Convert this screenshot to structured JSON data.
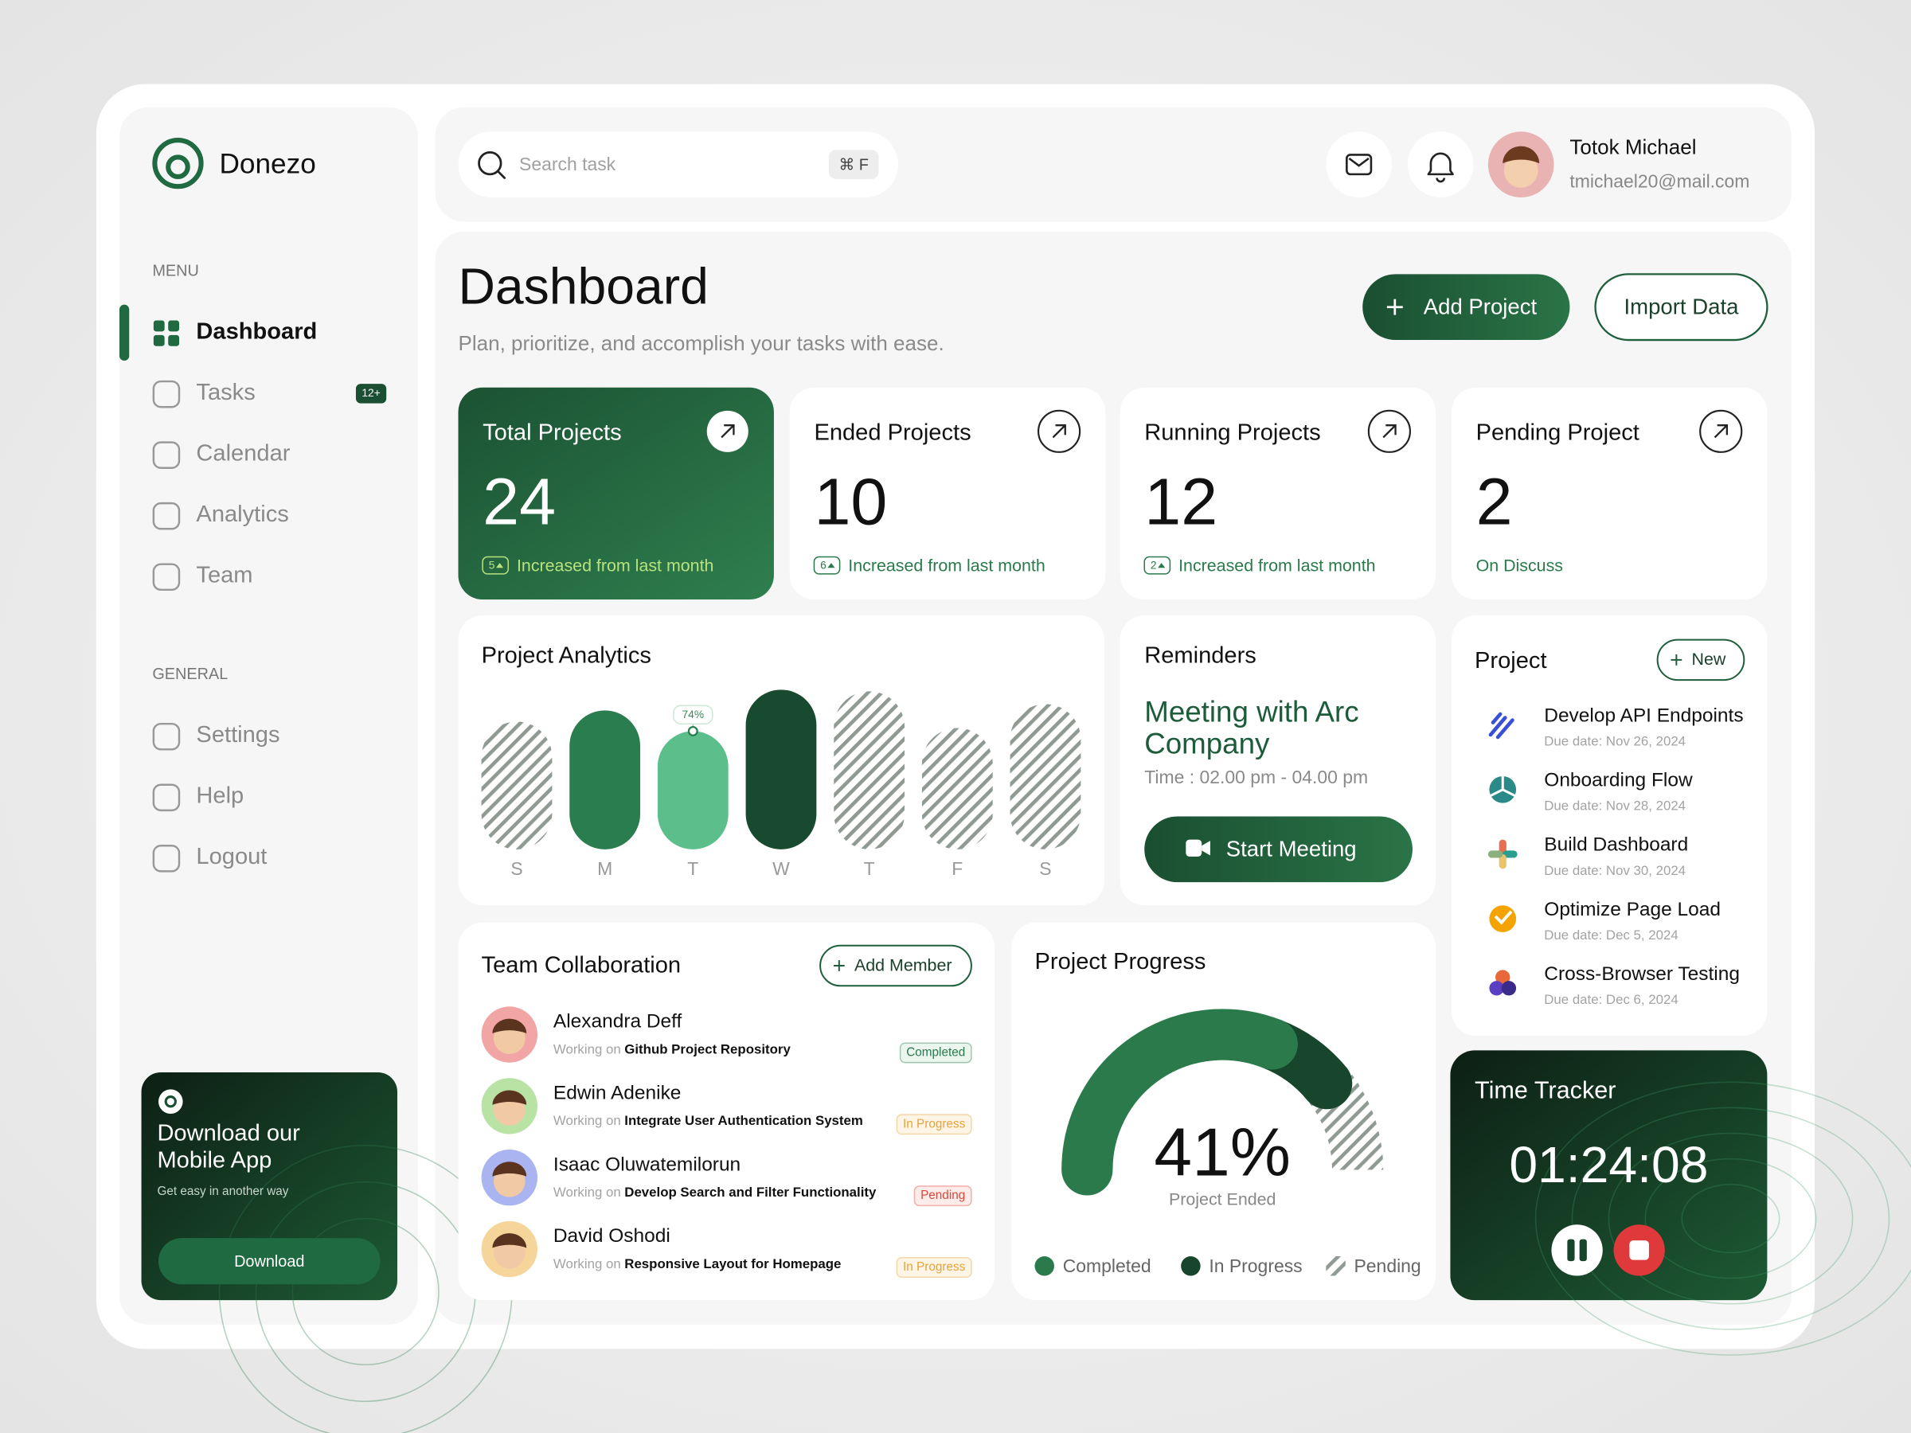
{
  "sidebar": {
    "brand": "Donezo",
    "menu_label": "MENU",
    "menu": [
      {
        "label": "Dashboard",
        "active": true
      },
      {
        "label": "Tasks",
        "badge": "12+"
      },
      {
        "label": "Calendar"
      },
      {
        "label": "Analytics"
      },
      {
        "label": "Team"
      }
    ],
    "general_label": "GENERAL",
    "general": [
      {
        "label": "Settings"
      },
      {
        "label": "Help"
      },
      {
        "label": "Logout"
      }
    ],
    "promo": {
      "title": [
        "Download our",
        "Mobile App"
      ],
      "subtitle": "Get easy in another way",
      "button": "Download"
    }
  },
  "header": {
    "search_placeholder": "Search task",
    "shortcut": "⌘ F",
    "user": {
      "name": "Totok Michael",
      "email": "tmichael20@mail.com"
    }
  },
  "page": {
    "title": "Dashboard",
    "subtitle": "Plan, prioritize, and accomplish your tasks with ease.",
    "primary_action": "Add Project",
    "secondary_action": "Import Data"
  },
  "stats": [
    {
      "label": "Total Projects",
      "value": 24,
      "delta": 5,
      "note": "Increased from last month",
      "highlight": true
    },
    {
      "label": "Ended Projects",
      "value": 10,
      "delta": 6,
      "note": "Increased from last month"
    },
    {
      "label": "Running Projects",
      "value": 12,
      "delta": 2,
      "note": "Increased from last month"
    },
    {
      "label": "Pending Project",
      "value": 2,
      "note": "On Discuss"
    }
  ],
  "analytics": {
    "title": "Project Analytics",
    "days": [
      "S",
      "M",
      "T",
      "W",
      "T",
      "F",
      "S"
    ],
    "values": [
      80,
      87,
      74,
      100,
      99,
      76,
      91
    ],
    "value_labels": [
      null,
      null,
      "74%",
      null,
      null,
      null,
      null
    ],
    "fills": [
      "striped",
      "solid",
      "light",
      "dark",
      "striped",
      "striped",
      "striped"
    ]
  },
  "reminders": {
    "title": "Reminders",
    "event": [
      "Meeting with Arc",
      "Company"
    ],
    "time": "Time : 02.00 pm - 04.00 pm",
    "button": "Start Meeting"
  },
  "projects": {
    "title": "Project",
    "button": "New",
    "items": [
      {
        "name": "Develop API Endpoints",
        "due": "Due date: Nov 26, 2024"
      },
      {
        "name": "Onboarding Flow",
        "due": "Due date: Nov 28, 2024"
      },
      {
        "name": "Build Dashboard",
        "due": "Due date: Nov 30, 2024"
      },
      {
        "name": "Optimize Page Load",
        "due": "Due date: Dec 5, 2024"
      },
      {
        "name": "Cross-Browser Testing",
        "due": "Due date: Dec 6, 2024"
      }
    ]
  },
  "team": {
    "title": "Team Collaboration",
    "button": "Add Member",
    "prefix": "Working on",
    "members": [
      {
        "name": "Alexandra Deff",
        "task": "Github Project Repository",
        "status": "Completed",
        "tone": "green"
      },
      {
        "name": "Edwin Adenike",
        "task": "Integrate User Authentication System",
        "status": "In Progress",
        "tone": "orange"
      },
      {
        "name": "Isaac Oluwatemilorun",
        "task": "Develop Search and Filter Functionality",
        "status": "Pending",
        "tone": "red"
      },
      {
        "name": "David Oshodi",
        "task": "Responsive Layout for Homepage",
        "status": "In Progress",
        "tone": "orange"
      }
    ]
  },
  "progress": {
    "title": "Project Progress",
    "center_label": "41%",
    "caption": "Project Ended",
    "segments": [
      {
        "name": "Completed",
        "value": 62,
        "color": "#2a7a4c"
      },
      {
        "name": "In Progress",
        "value": 16,
        "color": "#17462c"
      },
      {
        "name": "Pending",
        "value": 22,
        "color": "#8e9a93",
        "striped": true
      }
    ]
  },
  "timer": {
    "title": "Time Tracker",
    "time": "01:24:08"
  }
}
